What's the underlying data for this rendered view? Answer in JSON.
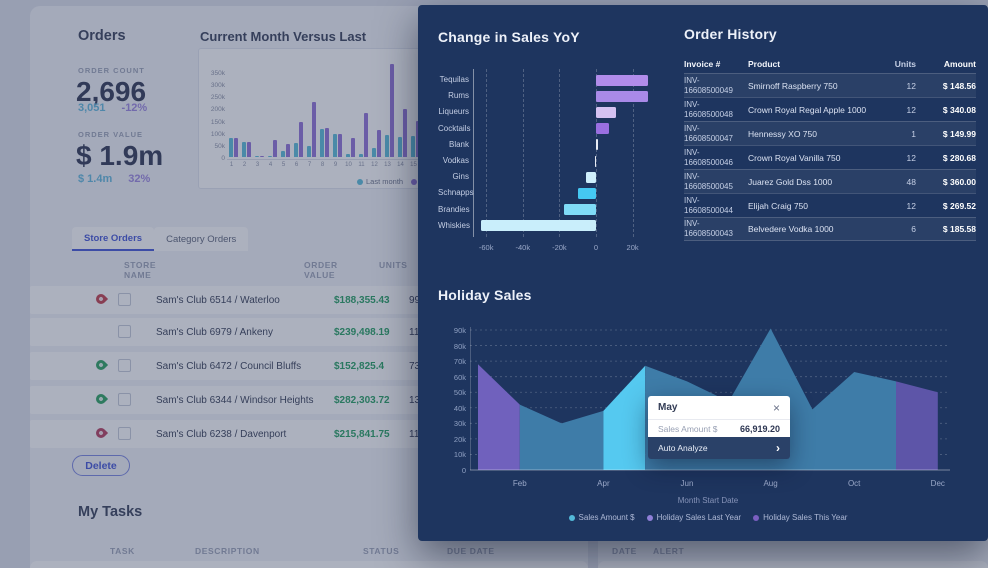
{
  "background": {
    "orders": {
      "title": "Orders",
      "count_label": "ORDER COUNT",
      "count": "2,696",
      "count_prev": "3,051",
      "count_delta": "-12%",
      "value_label": "ORDER VALUE",
      "value": "$ 1.9m",
      "value_prev": "$ 1.4m",
      "value_delta": "32%"
    },
    "tabs": [
      {
        "label": "Store Orders",
        "active": true
      },
      {
        "label": "Category Orders",
        "active": false
      }
    ],
    "store_table": {
      "headers": [
        "STORE NAME",
        "ORDER VALUE",
        "UNITS"
      ],
      "rows": [
        {
          "pin": "red",
          "name": "Sam's Club 6514 / Waterloo",
          "value": "$188,355.43",
          "units": "9920"
        },
        {
          "pin": "none",
          "name": "Sam's Club 6979 / Ankeny",
          "value": "$239,498.19",
          "units": "11392"
        },
        {
          "pin": "green",
          "name": "Sam's Club 6472 / Council Bluffs",
          "value": "$152,825.4",
          "units": "7318"
        },
        {
          "pin": "green",
          "name": "Sam's Club 6344 / Windsor Heights",
          "value": "$282,303.72",
          "units": "13903"
        },
        {
          "pin": "crimson",
          "name": "Sam's Club 6238 / Davenport",
          "value": "$215,841.75",
          "units": "11539"
        }
      ]
    },
    "delete_label": "Delete",
    "tasks": {
      "title": "My Tasks",
      "headers": [
        "TASK",
        "DESCRIPTION",
        "STATUS",
        "DUE DATE"
      ]
    },
    "alerts": {
      "headers": [
        "DATE",
        "ALERT"
      ]
    }
  },
  "panel": {
    "order_history": {
      "title": "Order History",
      "headers": [
        "Invoice #",
        "Product",
        "Units",
        "Amount"
      ],
      "rows": [
        {
          "invoice_prefix": "INV-",
          "invoice_number": "16608500049",
          "product": "Smirnoff Raspberry 750",
          "units": "12",
          "amount": "$ 148.56"
        },
        {
          "invoice_prefix": "INV-",
          "invoice_number": "16608500048",
          "product": "Crown Royal Regal Apple 1000",
          "units": "12",
          "amount": "$ 340.08"
        },
        {
          "invoice_prefix": "INV-",
          "invoice_number": "16608500047",
          "product": "Hennessy XO 750",
          "units": "1",
          "amount": "$ 149.99"
        },
        {
          "invoice_prefix": "INV-",
          "invoice_number": "16608500046",
          "product": "Crown Royal Vanilla 750",
          "units": "12",
          "amount": "$ 280.68"
        },
        {
          "invoice_prefix": "INV-",
          "invoice_number": "16608500045",
          "product": "Juarez Gold Dss 1000",
          "units": "48",
          "amount": "$ 360.00"
        },
        {
          "invoice_prefix": "INV-",
          "invoice_number": "16608500044",
          "product": "Elijah Craig 750",
          "units": "12",
          "amount": "$ 269.52"
        },
        {
          "invoice_prefix": "INV-",
          "invoice_number": "16608500043",
          "product": "Belvedere Vodka 1000",
          "units": "6",
          "amount": "$ 185.58"
        }
      ]
    },
    "tooltip": {
      "title": "May",
      "close_icon": "×",
      "label": "Sales Amount $",
      "value": "66,919.20",
      "action": "Auto Analyze",
      "chevron": "›"
    }
  },
  "colors": {
    "panel_bg": "#1e355f",
    "accent_blue": "#3f51d6",
    "positive_green": "#1f9e5e",
    "teal_text": "#5fb7dc",
    "purple_text": "#9b85e0",
    "tooltip_action_bg": "#2a4168"
  },
  "chart_data": [
    {
      "id": "current-month-versus-last",
      "type": "bar",
      "title": "Current Month Versus Last",
      "categories": [
        "1",
        "2",
        "3",
        "4",
        "5",
        "6",
        "7",
        "8",
        "9",
        "10",
        "11",
        "12",
        "13",
        "14",
        "15"
      ],
      "series": [
        {
          "name": "Last month",
          "color": "#57bcd9",
          "values": [
            80000,
            62000,
            3000,
            2000,
            25000,
            57000,
            47000,
            115000,
            93000,
            12000,
            14000,
            38000,
            92000,
            82000,
            85000
          ]
        },
        {
          "name": "This month",
          "color": "#8f6fd8",
          "values": [
            80000,
            60000,
            5000,
            72000,
            55000,
            145000,
            225000,
            118000,
            93000,
            80000,
            180000,
            110000,
            385000,
            198000,
            150000
          ]
        }
      ],
      "ytick_labels": [
        "0",
        "50k",
        "100k",
        "150k",
        "200k",
        "250k",
        "300k",
        "350k"
      ],
      "ytick_values": [
        0,
        50000,
        100000,
        150000,
        200000,
        250000,
        300000,
        350000
      ],
      "ymax": 350000,
      "legend_position": "bottom-right"
    },
    {
      "id": "change-in-sales-yoy",
      "type": "bar_horizontal",
      "title": "Change in Sales YoY",
      "categories": [
        "Tequilas",
        "Rums",
        "Liqueurs",
        "Cocktails",
        "Blank",
        "Vodkas",
        "Gins",
        "Schnapps",
        "Brandies",
        "Whiskies"
      ],
      "values": [
        28600,
        28400,
        11000,
        7100,
        400,
        -600,
        -5200,
        -10000,
        -17700,
        -63000
      ],
      "bar_colors": [
        "#b18cea",
        "#a98ae8",
        "#d5c2f2",
        "#9a6fe0",
        "#e8ecf5",
        "#e8ecf5",
        "#cfeffc",
        "#45c8f2",
        "#7fdbf7",
        "#c9eefb"
      ],
      "xtick_labels": [
        "-60k",
        "-40k",
        "-20k",
        "0",
        "20k"
      ],
      "xtick_values": [
        -60000,
        -40000,
        -20000,
        0,
        20000
      ]
    },
    {
      "id": "holiday-sales",
      "type": "area",
      "title": "Holiday Sales",
      "x_categories": [
        "Jan",
        "Feb",
        "Mar",
        "Apr",
        "May",
        "Jun",
        "Jul",
        "Aug",
        "Sep",
        "Oct",
        "Nov",
        "Dec"
      ],
      "values": [
        68000,
        42000,
        30000,
        38000,
        67000,
        57000,
        44000,
        91000,
        39000,
        63000,
        57000,
        50000
      ],
      "segments": [
        {
          "from": 0,
          "to": 1,
          "color": "#7061bd",
          "series": "Holiday Sales Last Year"
        },
        {
          "from": 1,
          "to": 3,
          "color": "#3e7ca8",
          "series": "Sales Amount $"
        },
        {
          "from": 3,
          "to": 4,
          "color": "#55c9f0",
          "series": "Sales Amount $ (selected: May)"
        },
        {
          "from": 4,
          "to": 10,
          "color": "#3e7ca8",
          "series": "Sales Amount $"
        },
        {
          "from": 10,
          "to": 11,
          "color": "#5d55a8",
          "series": "Holiday Sales This Year"
        }
      ],
      "selected_point": {
        "x": "May",
        "label": "Sales Amount $",
        "value": 66919.2
      },
      "ytick_labels": [
        "0",
        "10k",
        "20k",
        "30k",
        "40k",
        "50k",
        "60k",
        "70k",
        "80k",
        "90k"
      ],
      "ytick_values": [
        0,
        10000,
        20000,
        30000,
        40000,
        50000,
        60000,
        70000,
        80000,
        90000
      ],
      "xtick_labels": [
        "Feb",
        "Apr",
        "Jun",
        "Aug",
        "Oct",
        "Dec"
      ],
      "xtick_month_index": [
        1,
        3,
        5,
        7,
        9,
        11
      ],
      "xlabel": "Month Start Date",
      "legend": [
        {
          "label": "Sales Amount $",
          "color": "#53b9d8"
        },
        {
          "label": "Holiday Sales Last Year",
          "color": "#8f7fd8"
        },
        {
          "label": "Holiday Sales This Year",
          "color": "#7a5fc0"
        }
      ]
    }
  ]
}
